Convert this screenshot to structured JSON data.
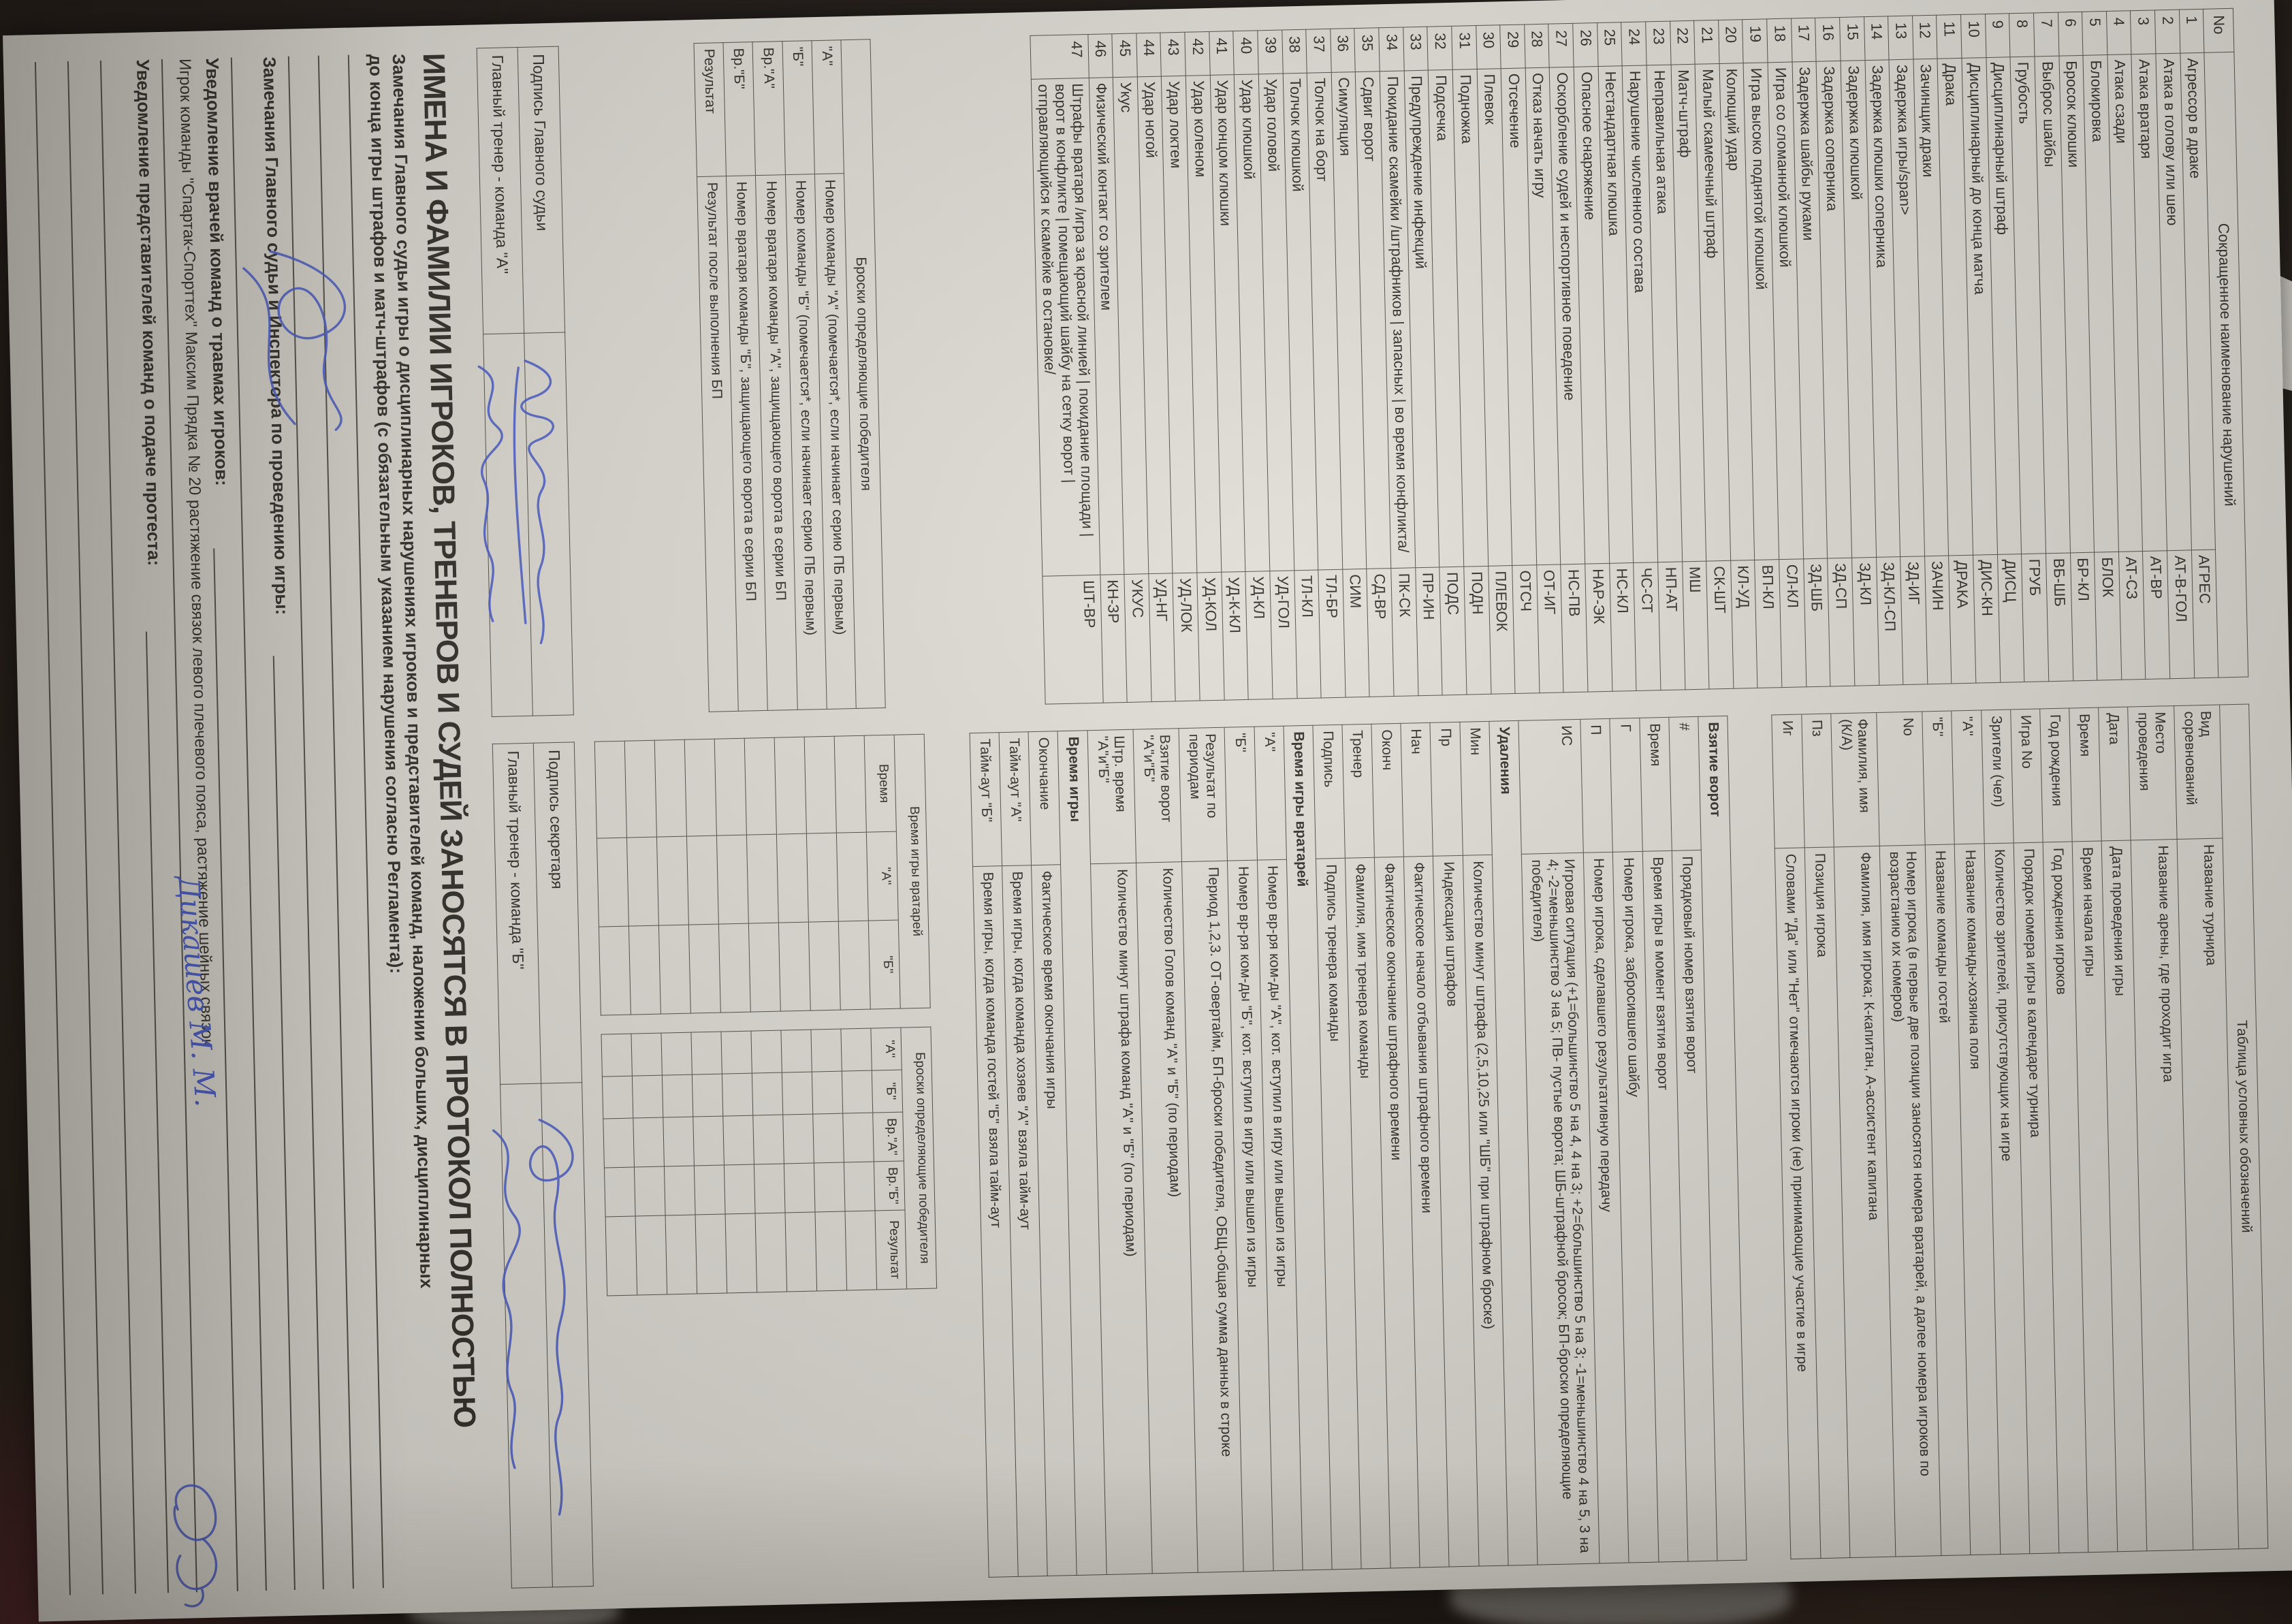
{
  "colors": {
    "background": "#241e1b",
    "paper": "#dbd8d1",
    "ink": "#36332e",
    "line": "#57534c",
    "blue_ink": "#4c5ec5"
  },
  "violations": {
    "header_no": "No",
    "header_name": "Сокращенное наименование нарушений",
    "rows": [
      {
        "n": "1",
        "name": "Агрессор в драке",
        "abbr": "АГРЕС"
      },
      {
        "n": "2",
        "name": "Атака в голову или шею",
        "abbr": "АТ-В-ГОЛ"
      },
      {
        "n": "3",
        "name": "Атака вратаря",
        "abbr": "АТ-ВР"
      },
      {
        "n": "4",
        "name": "Атака сзади",
        "abbr": "АТ-СЗ"
      },
      {
        "n": "5",
        "name": "Блокировка",
        "abbr": "БЛОК"
      },
      {
        "n": "6",
        "name": "Бросок клюшки",
        "abbr": "БР-КЛ"
      },
      {
        "n": "7",
        "name": "Выброс шайбы",
        "abbr": "ВБ-ШБ"
      },
      {
        "n": "8",
        "name": "Грубость",
        "abbr": "ГРУБ"
      },
      {
        "n": "9",
        "name": "Дисциплинарный штраф",
        "abbr": "ДИСЦ"
      },
      {
        "n": "10",
        "name": "Дисциплинарный до конца матча",
        "abbr": "ДИС-КН"
      },
      {
        "n": "11",
        "name": "Драка",
        "abbr": "ДРАКА"
      },
      {
        "n": "12",
        "name": "Зачинщик драки",
        "abbr": "ЗАЧИН"
      },
      {
        "n": "13",
        "name": "Задержка игры/span>",
        "abbr": "ЗД-ИГ"
      },
      {
        "n": "14",
        "name": "Задержка клюшки соперника",
        "abbr": "ЗД-КЛ-СП"
      },
      {
        "n": "15",
        "name": "Задержка клюшкой",
        "abbr": "ЗД-КЛ"
      },
      {
        "n": "16",
        "name": "Задержка соперника",
        "abbr": "ЗД-СП"
      },
      {
        "n": "17",
        "name": "Задержка шайбы руками",
        "abbr": "ЗД-ШБ"
      },
      {
        "n": "18",
        "name": "Игра со сломанной клюшкой",
        "abbr": "СЛ-КЛ"
      },
      {
        "n": "19",
        "name": "Игра высоко поднятой клюшкой",
        "abbr": "ВП-КЛ"
      },
      {
        "n": "20",
        "name": "Колющий удар",
        "abbr": "КЛ-УД"
      },
      {
        "n": "21",
        "name": "Малый скамеечный штраф",
        "abbr": "СК-ШТ"
      },
      {
        "n": "22",
        "name": "Матч-штраф",
        "abbr": "МШ"
      },
      {
        "n": "23",
        "name": "Неправильная атака",
        "abbr": "НП-АТ"
      },
      {
        "n": "24",
        "name": "Нарушение численного состава",
        "abbr": "ЧС-СТ"
      },
      {
        "n": "25",
        "name": "Нестандартная клюшка",
        "abbr": "НС-КЛ"
      },
      {
        "n": "26",
        "name": "Опасное снаряжение",
        "abbr": "НАР-ЭК"
      },
      {
        "n": "27",
        "name": "Оскорбление судей и неспортивное поведение",
        "abbr": "НС-ПВ"
      },
      {
        "n": "28",
        "name": "Отказ начать игру",
        "abbr": "ОТ-ИГ"
      },
      {
        "n": "29",
        "name": "Отсечение",
        "abbr": "ОТСЧ"
      },
      {
        "n": "30",
        "name": "Плевок",
        "abbr": "ПЛЕВОК"
      },
      {
        "n": "31",
        "name": "Подножка",
        "abbr": "ПОДН"
      },
      {
        "n": "32",
        "name": "Подсечка",
        "abbr": "ПОДС"
      },
      {
        "n": "33",
        "name": "Предупреждение инфекций",
        "abbr": "ПР-ИН"
      },
      {
        "n": "34",
        "name": "Покидание скамейки /штрафников | запасных | во время конфликта/",
        "abbr": "ПК-СК"
      },
      {
        "n": "35",
        "name": "Сдвиг ворот",
        "abbr": "СД-ВР"
      },
      {
        "n": "36",
        "name": "Симуляция",
        "abbr": "СИМ"
      },
      {
        "n": "37",
        "name": "Толчок на борт",
        "abbr": "ТЛ-БР"
      },
      {
        "n": "38",
        "name": "Толчок клюшкой",
        "abbr": "ТЛ-КЛ"
      },
      {
        "n": "39",
        "name": "Удар головой",
        "abbr": "УД-ГОЛ"
      },
      {
        "n": "40",
        "name": "Удар клюшкой",
        "abbr": "УД-КЛ"
      },
      {
        "n": "41",
        "name": "Удар концом клюшки",
        "abbr": "УД-К-КЛ"
      },
      {
        "n": "42",
        "name": "Удар коленом",
        "abbr": "УД-КОЛ"
      },
      {
        "n": "43",
        "name": "Удар локтем",
        "abbr": "УД-ЛОК"
      },
      {
        "n": "44",
        "name": "Удар ногой",
        "abbr": "УД-НГ"
      },
      {
        "n": "45",
        "name": "Укус",
        "abbr": "УКУС"
      },
      {
        "n": "46",
        "name": "Физический контакт со зрителем",
        "abbr": "КН-ЗР"
      },
      {
        "n": "47",
        "name": "Штрафы вратаря /игра за красной линией | покидание площади | ворот в конфликте | помещающий шайбу на сетку ворот |отправляющийся к скамейке в остановке/",
        "abbr": "ШТ-ВР"
      }
    ]
  },
  "legend": {
    "title": "Таблица условных обозначений",
    "rows1": [
      {
        "term": "Вид\nсоревнований",
        "desc": "Название турнира"
      },
      {
        "term": "Место\nпроведения",
        "desc": "Название арены, где проходит игра"
      },
      {
        "term": "Дата",
        "desc": "Дата проведения игры"
      },
      {
        "term": "Время",
        "desc": "Время начала игры"
      },
      {
        "term": "Год рождения",
        "desc": "Год рождения игроков"
      },
      {
        "term": "Игра No",
        "desc": "Порядок номера игры в календаре турнира"
      },
      {
        "term": "Зрители (чел)",
        "desc": "Количество зрителей, присутствующих на игре"
      },
      {
        "term": "\"А\"",
        "desc": "Название команды-хозяина поля"
      },
      {
        "term": "\"Б\"",
        "desc": "Название команды гостей"
      },
      {
        "term": "No",
        "desc": "Номер игрока (в первые две позиции заносятся номера вратарей, а далее номера игроков по возрастанию их номеров)"
      },
      {
        "term": "Фамилия, имя\n(К/А)",
        "desc": "Фамилия, имя игрока; К-капитан, А-ассистент капитана"
      },
      {
        "term": "Пз",
        "desc": "Позиция игрока"
      },
      {
        "term": "Иг",
        "desc": "Словами \"Да\" или \"Нет\" отмечаются игроки (не) принимающие участие в игре"
      }
    ],
    "rows2": [
      {
        "term": "Взятие ворот",
        "desc": null
      },
      {
        "term": "#",
        "desc": "Порядковый номер взятия ворот"
      },
      {
        "term": "Время",
        "desc": "Время игры в момент взятия ворот"
      },
      {
        "term": "Г",
        "desc": "Номер игрока, забросившего шайбу"
      },
      {
        "term": "П",
        "desc": "Номер игрока, сделавшего результативную передачу"
      },
      {
        "term": "ИС",
        "desc": "Игровая ситуация (+1=большинство 5 на 4, 4 на 3; +2=большинство 5 на 3; -1=меньшинство 4 на 5, 3 на 4; -2=меньшинство 3 на 5; ПВ- пустые ворота; ШБ-штрафной бросок; БП-броски определяющие победителя)"
      },
      {
        "term": "Удаления",
        "desc": null
      },
      {
        "term": "Мин",
        "desc": "Количество минут штрафа (2,5,10,25 или \"ШБ\" при штрафном броске)"
      },
      {
        "term": "Пр",
        "desc": "Индексация штрафов"
      },
      {
        "term": "Нач",
        "desc": "Фактическое начало отбывания штрафного времени"
      },
      {
        "term": "Оконч",
        "desc": "Фактическое окончание штрафного времени"
      },
      {
        "term": "Тренер",
        "desc": "Фамилия, имя тренера команды"
      },
      {
        "term": "Подпись",
        "desc": "Подпись тренера команды"
      },
      {
        "term": "Время игры вратарей",
        "desc": null
      },
      {
        "term": "\"А\"",
        "desc": "Номер вр-ря ком-ды \"А\", кот. вступил в игру или вышел из игры"
      },
      {
        "term": "\"Б\"",
        "desc": "Номер вр-ря ком-ды \"Б\", кот. вступил в игру или вышел из игры"
      },
      {
        "term": "Результат по\nпериодам",
        "desc": "Период 1,2,3. ОТ-овертайм, БП-броски победителя, ОБЩ-общая сумма данных в строке"
      },
      {
        "term": "Взятие ворот \"А\"и\"Б\"",
        "desc": "Количество Голов команд \"А\" и \"Б\" (по периодам)"
      },
      {
        "term": "Штр. время \"А\"и\"Б\"",
        "desc": "Количество минут штрафа команд \"А\" и \"Б\" (по периодам)"
      },
      {
        "term": "Время игры",
        "desc": null
      },
      {
        "term": "Окончание",
        "desc": "Фактическое время окончания игры"
      },
      {
        "term": "Тайм-аут \"А\"",
        "desc": "Время игры, когда команда хозяев \"А\" взяла тайм-аут"
      },
      {
        "term": "Тайм-аут \"Б\"",
        "desc": "Время игры, когда команда гостей \"Б\" взяла тайм-аут"
      }
    ]
  },
  "goalie_grid": {
    "title": "Время игры вратарей",
    "cols": [
      "Время",
      "\"А\"",
      "\"Б\""
    ],
    "empty_rows": 9
  },
  "shootout_grid": {
    "title": "Броски определяющие победителя",
    "cols": [
      "\"А\"",
      "\"Б\"",
      "Вр.\"А\"",
      "Вр.\"Б\"",
      "Результат"
    ],
    "empty_rows": 9
  },
  "shootout_legend": {
    "title": "Броски определяющие победителя",
    "rows": [
      {
        "term": "\"А\"",
        "desc": "Номер команды \"А\" (помечается*, если начинает серию ПБ первым)"
      },
      {
        "term": "\"Б\"",
        "desc": "Номер команды \"Б\" (помечается*, если начинает серию ПБ первым)"
      },
      {
        "term": "Вр.\"А\"",
        "desc": "Номер вратаря команды \"А\", защищающего ворота в серии БП"
      },
      {
        "term": "Вр.\"Б\"",
        "desc": "Номер вратаря команды \"Б\", защищающего ворота в серии БП"
      },
      {
        "term": "Результат",
        "desc": "Результат после выполнения БП"
      }
    ]
  },
  "signatures": {
    "left": [
      "Подпись Главного судьи",
      "Главный тренер - команда \"А\""
    ],
    "right": [
      "Подпись секретаря",
      "Главный тренер - команда \"Б\""
    ]
  },
  "title_line": "ИМЕНА И ФАМИЛИИ ИГРОКОВ, ТРЕНЕРОВ И СУДЕЙ ЗАНОСЯТСЯ В ПРОТОКОЛ ПОЛНОСТЬЮ",
  "sections": {
    "remarks1_line1": "Замечания Главного судьи игры о дисциплинарных нарушениях игроков и представителей команд, наложении больших, дисциплинарных",
    "remarks1_line2": "до конца игры штрафов и матч-штрафов (с обязательным указанием нарушения согласно Регламента):",
    "remarks2": "Замечания Главного судьи и Инспектора по проведению игры:",
    "doctors": "Уведомление врачей команд о травмах игроков:",
    "injury_note": "Игрок команды \"Спартак-Спорттех\" Максим Прядка № 20 растяжение связок левого плечевого пояса, растяжение шейных связок",
    "protest": "Уведомление представителей команд о подаче протеста:",
    "handwritten_name": "Дикашев М. М."
  }
}
